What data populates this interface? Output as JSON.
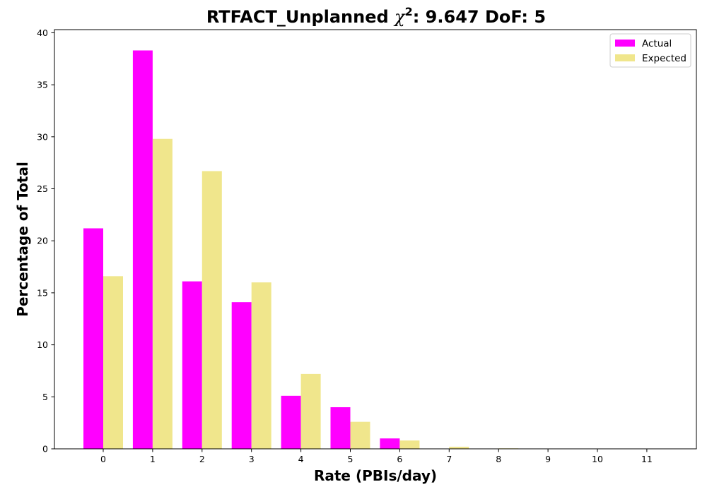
{
  "chart_data": {
    "type": "bar",
    "title": {
      "prefix": "RTFACT_Unplanned ",
      "chi_symbol": "χ",
      "chi_exponent": "2",
      "suffix": ": 9.647 DoF: 5"
    },
    "xlabel": "Rate (PBIs/day)",
    "ylabel": "Percentage of Total",
    "categories": [
      "0",
      "1",
      "2",
      "3",
      "4",
      "5",
      "6",
      "7",
      "8",
      "9",
      "10",
      "11"
    ],
    "ylim": [
      0,
      40.3
    ],
    "yticks": [
      "0",
      "5",
      "10",
      "15",
      "20",
      "25",
      "30",
      "35",
      "40"
    ],
    "legend_position": "top-right",
    "series": [
      {
        "name": "Actual",
        "color": "#ff00ff",
        "values": [
          21.2,
          38.3,
          16.1,
          14.1,
          5.1,
          4.0,
          1.0,
          0,
          0,
          0,
          0,
          0
        ]
      },
      {
        "name": "Expected",
        "color": "#f0e68c",
        "values": [
          16.6,
          29.8,
          26.7,
          16.0,
          7.2,
          2.6,
          0.8,
          0.2,
          0.05,
          0,
          0,
          0
        ]
      }
    ]
  }
}
